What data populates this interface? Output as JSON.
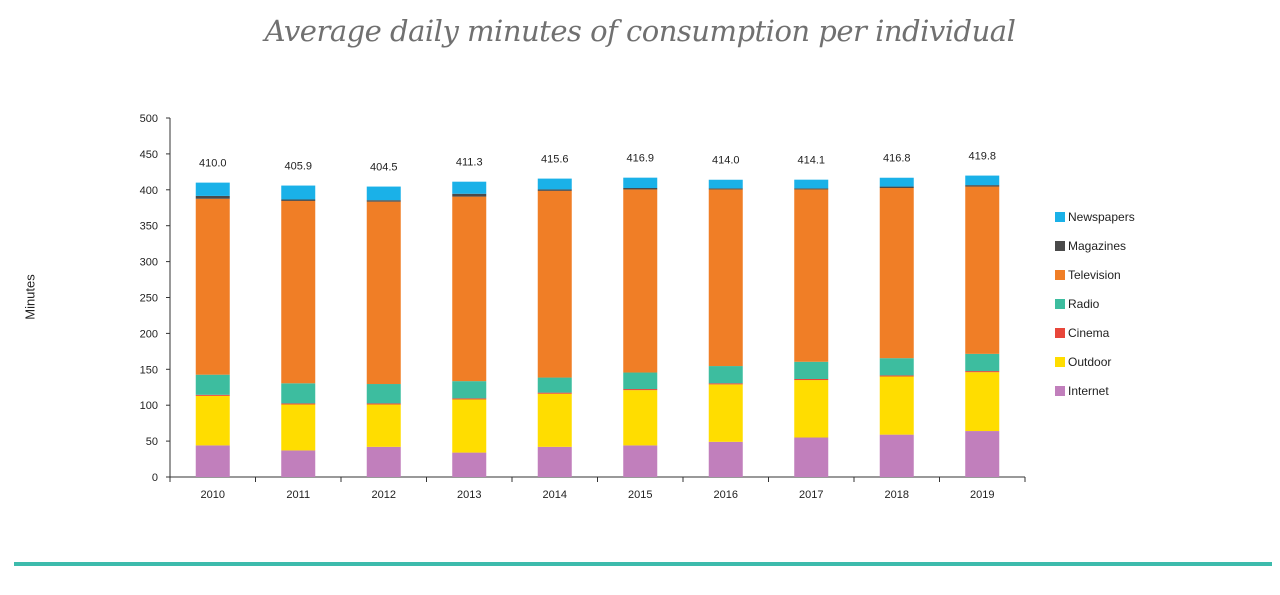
{
  "chart_data": {
    "type": "bar",
    "stacked": true,
    "title": "Average daily minutes of consumption per individual",
    "ylabel": "Minutes",
    "xlabel": "",
    "ylim": [
      0,
      500
    ],
    "yticks": [
      0,
      50,
      100,
      150,
      200,
      250,
      300,
      350,
      400,
      450,
      500
    ],
    "categories": [
      "2010",
      "2011",
      "2012",
      "2013",
      "2014",
      "2015",
      "2016",
      "2017",
      "2018",
      "2019"
    ],
    "totals": [
      "410.0",
      "405.9",
      "404.5",
      "411.3",
      "415.6",
      "416.9",
      "414.0",
      "414.1",
      "416.8",
      "419.8"
    ],
    "grid": false,
    "legend_position": "right",
    "series": [
      {
        "name": "Internet",
        "color": "#c17fbc",
        "values": [
          44,
          37,
          42,
          34,
          42,
          44,
          49,
          55,
          59,
          64
        ]
      },
      {
        "name": "Outdoor",
        "color": "#ffdd00",
        "values": [
          69,
          64,
          59,
          74,
          74,
          77,
          80,
          80,
          81,
          82
        ]
      },
      {
        "name": "Cinema",
        "color": "#e8463a",
        "values": [
          1.5,
          1.5,
          1.5,
          1.5,
          1.5,
          1.5,
          1.5,
          1.5,
          1.5,
          1.5
        ]
      },
      {
        "name": "Radio",
        "color": "#3dbd9f",
        "values": [
          28,
          28,
          27,
          24,
          21,
          23,
          24,
          24,
          24,
          24
        ]
      },
      {
        "name": "Television",
        "color": "#f07e26",
        "values": [
          245,
          254,
          254,
          257,
          260,
          255,
          246,
          240,
          237,
          233
        ]
      },
      {
        "name": "Magazines",
        "color": "#4a4a4a",
        "values": [
          4,
          2,
          2,
          4,
          2,
          2,
          1.5,
          1.5,
          2,
          2
        ]
      },
      {
        "name": "Newspapers",
        "color": "#1ab1e8",
        "values": [
          18.5,
          19.4,
          19,
          16.8,
          15.1,
          14.4,
          12,
          12.1,
          12.3,
          13.3
        ]
      }
    ]
  }
}
